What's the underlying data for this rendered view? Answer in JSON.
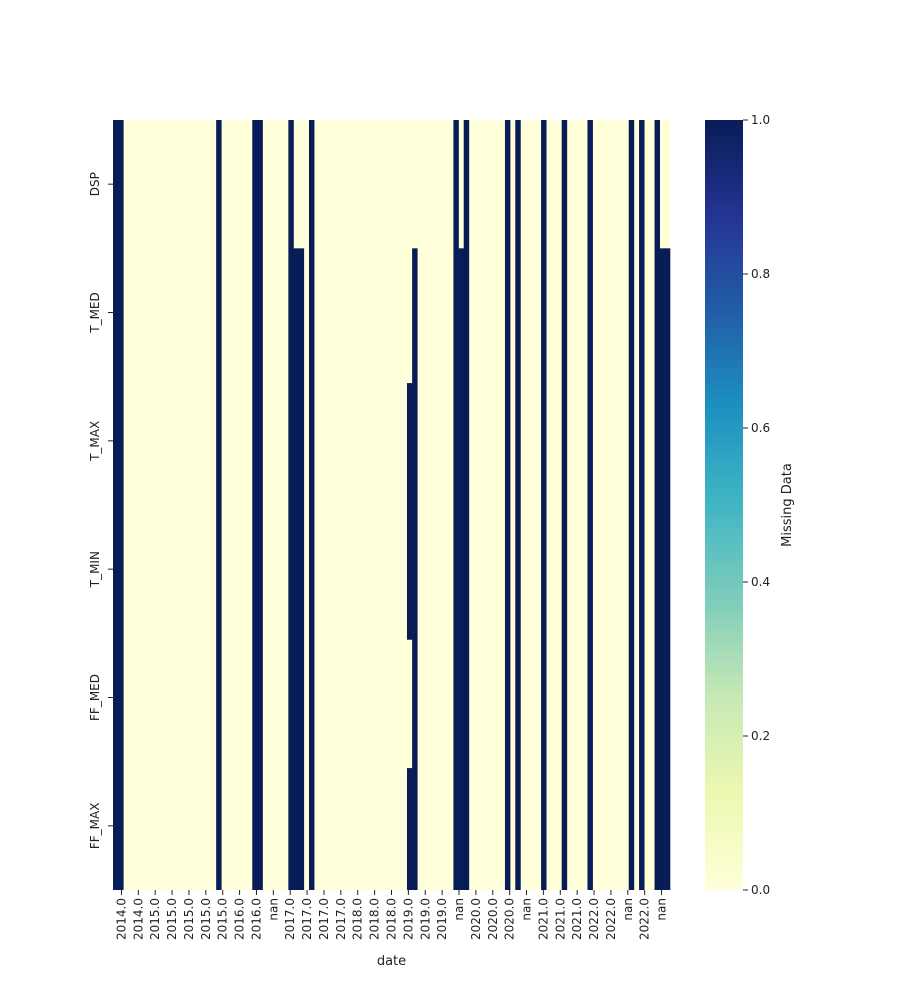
{
  "chart_data": {
    "type": "heatmap",
    "xlabel": "date",
    "ylabel": "",
    "colorbar_label": "Missing Data",
    "colormap": "YlGnBu",
    "color_low": "#ffffd9",
    "color_high": "#081d58",
    "vmin": 0,
    "vmax": 1,
    "colorbar_ticks": [
      "0.0",
      "0.2",
      "0.4",
      "0.6",
      "0.8",
      "1.0"
    ],
    "rows": [
      "DSP",
      "T_MED",
      "T_MAX",
      "T_MIN",
      "FF_MED",
      "FF_MAX"
    ],
    "x_tick_labels": [
      "2014.0",
      "2014.0",
      "2015.0",
      "2015.0",
      "2015.0",
      "2015.0",
      "2015.0",
      "2016.0",
      "2016.0",
      "nan",
      "2017.0",
      "2017.0",
      "2017.0",
      "2017.0",
      "2018.0",
      "2018.0",
      "2018.0",
      "2019.0",
      "2019.0",
      "2019.0",
      "nan",
      "2020.0",
      "2020.0",
      "2020.0",
      "nan",
      "2021.0",
      "2021.0",
      "2021.0",
      "2022.0",
      "2022.0",
      "nan",
      "2022.0",
      "nan"
    ],
    "n_columns": 108,
    "missing_segments": [
      {
        "col_start": 0,
        "col_end": 1,
        "row_start": 0,
        "row_end": 6
      },
      {
        "col_start": 20,
        "col_end": 20,
        "row_start": 0,
        "row_end": 6
      },
      {
        "col_start": 27,
        "col_end": 28,
        "row_start": 0,
        "row_end": 6
      },
      {
        "col_start": 34,
        "col_end": 34,
        "row_start": 0,
        "row_end": 6
      },
      {
        "col_start": 35,
        "col_end": 36,
        "row_start": 1,
        "row_end": 6
      },
      {
        "col_start": 38,
        "col_end": 38,
        "row_start": 0,
        "row_end": 6
      },
      {
        "col_start": 57,
        "col_end": 57,
        "row_start": 2.05,
        "row_end": 4.05
      },
      {
        "col_start": 57,
        "col_end": 57,
        "row_start": 5.05,
        "row_end": 6
      },
      {
        "col_start": 58,
        "col_end": 58,
        "row_start": 1,
        "row_end": 6
      },
      {
        "col_start": 66,
        "col_end": 66,
        "row_start": 0,
        "row_end": 6
      },
      {
        "col_start": 67,
        "col_end": 67,
        "row_start": 1,
        "row_end": 6
      },
      {
        "col_start": 68,
        "col_end": 68,
        "row_start": 0,
        "row_end": 6
      },
      {
        "col_start": 76,
        "col_end": 76,
        "row_start": 0,
        "row_end": 6
      },
      {
        "col_start": 78,
        "col_end": 78,
        "row_start": 0,
        "row_end": 6
      },
      {
        "col_start": 83,
        "col_end": 83,
        "row_start": 0,
        "row_end": 6
      },
      {
        "col_start": 87,
        "col_end": 87,
        "row_start": 0,
        "row_end": 6
      },
      {
        "col_start": 92,
        "col_end": 92,
        "row_start": 0,
        "row_end": 6
      },
      {
        "col_start": 100,
        "col_end": 100,
        "row_start": 0,
        "row_end": 6
      },
      {
        "col_start": 102,
        "col_end": 102,
        "row_start": 0,
        "row_end": 6
      },
      {
        "col_start": 105,
        "col_end": 105,
        "row_start": 0,
        "row_end": 6
      },
      {
        "col_start": 106,
        "col_end": 106,
        "row_start": 1,
        "row_end": 6
      },
      {
        "col_start": 106,
        "col_end": 106,
        "row_start": 4.05,
        "row_end": 6
      },
      {
        "col_start": 107,
        "col_end": 107,
        "row_start": 1,
        "row_end": 6
      }
    ],
    "grid": false,
    "legend": "none"
  }
}
